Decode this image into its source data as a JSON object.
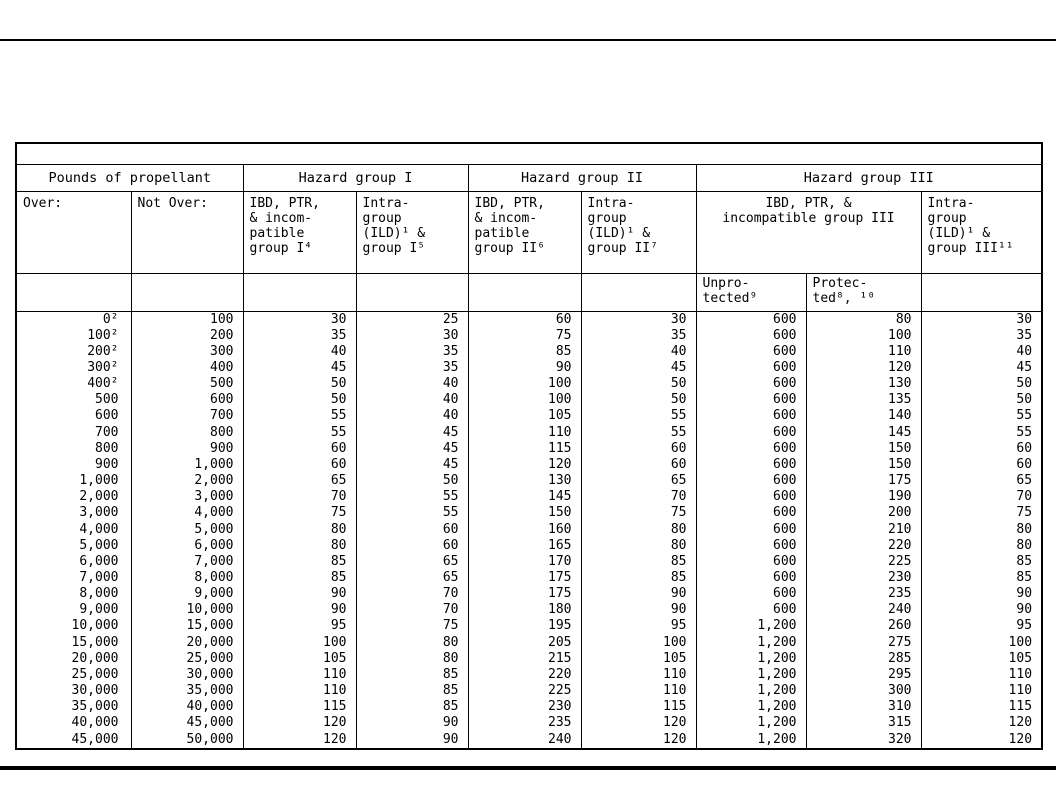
{
  "page": {
    "background": "#ffffff",
    "rule_color": "#000000"
  },
  "table": {
    "group_headers": [
      "Pounds of propellant",
      "Hazard group I",
      "Hazard group II",
      "Hazard group III"
    ],
    "column_headers": {
      "over": "Over:",
      "not_over": "Not Over:",
      "g1_ibd": "IBD, PTR,\n& incom-\npatible\ngroup I⁴",
      "g1_intra": "Intra-\ngroup\n(ILD)¹ &\ngroup I⁵",
      "g2_ibd": "IBD, PTR,\n& incom-\npatible\ngroup II⁶",
      "g2_intra": "Intra-\ngroup\n(ILD)¹ &\ngroup II⁷",
      "g3_ibd": "IBD, PTR, &\nincompatible group III",
      "g3_intra": "Intra-\ngroup\n(ILD)¹ &\ngroup III¹¹"
    },
    "sub_headers": {
      "unprotected": "Unpro-\ntected⁹",
      "protected": "Protec-\nted⁸, ¹⁰"
    },
    "rows": [
      [
        "0²",
        "100",
        "30",
        "25",
        "60",
        "30",
        "600",
        "80",
        "30"
      ],
      [
        "100²",
        "200",
        "35",
        "30",
        "75",
        "35",
        "600",
        "100",
        "35"
      ],
      [
        "200²",
        "300",
        "40",
        "35",
        "85",
        "40",
        "600",
        "110",
        "40"
      ],
      [
        "300²",
        "400",
        "45",
        "35",
        "90",
        "45",
        "600",
        "120",
        "45"
      ],
      [
        "400²",
        "500",
        "50",
        "40",
        "100",
        "50",
        "600",
        "130",
        "50"
      ],
      [
        "500",
        "600",
        "50",
        "40",
        "100",
        "50",
        "600",
        "135",
        "50"
      ],
      [
        "600",
        "700",
        "55",
        "40",
        "105",
        "55",
        "600",
        "140",
        "55"
      ],
      [
        "700",
        "800",
        "55",
        "45",
        "110",
        "55",
        "600",
        "145",
        "55"
      ],
      [
        "800",
        "900",
        "60",
        "45",
        "115",
        "60",
        "600",
        "150",
        "60"
      ],
      [
        "900",
        "1,000",
        "60",
        "45",
        "120",
        "60",
        "600",
        "150",
        "60"
      ],
      [
        "1,000",
        "2,000",
        "65",
        "50",
        "130",
        "65",
        "600",
        "175",
        "65"
      ],
      [
        "2,000",
        "3,000",
        "70",
        "55",
        "145",
        "70",
        "600",
        "190",
        "70"
      ],
      [
        "3,000",
        "4,000",
        "75",
        "55",
        "150",
        "75",
        "600",
        "200",
        "75"
      ],
      [
        "4,000",
        "5,000",
        "80",
        "60",
        "160",
        "80",
        "600",
        "210",
        "80"
      ],
      [
        "5,000",
        "6,000",
        "80",
        "60",
        "165",
        "80",
        "600",
        "220",
        "80"
      ],
      [
        "6,000",
        "7,000",
        "85",
        "65",
        "170",
        "85",
        "600",
        "225",
        "85"
      ],
      [
        "7,000",
        "8,000",
        "85",
        "65",
        "175",
        "85",
        "600",
        "230",
        "85"
      ],
      [
        "8,000",
        "9,000",
        "90",
        "70",
        "175",
        "90",
        "600",
        "235",
        "90"
      ],
      [
        "9,000",
        "10,000",
        "90",
        "70",
        "180",
        "90",
        "600",
        "240",
        "90"
      ],
      [
        "10,000",
        "15,000",
        "95",
        "75",
        "195",
        "95",
        "1,200",
        "260",
        "95"
      ],
      [
        "15,000",
        "20,000",
        "100",
        "80",
        "205",
        "100",
        "1,200",
        "275",
        "100"
      ],
      [
        "20,000",
        "25,000",
        "105",
        "80",
        "215",
        "105",
        "1,200",
        "285",
        "105"
      ],
      [
        "25,000",
        "30,000",
        "110",
        "85",
        "220",
        "110",
        "1,200",
        "295",
        "110"
      ],
      [
        "30,000",
        "35,000",
        "110",
        "85",
        "225",
        "110",
        "1,200",
        "300",
        "110"
      ],
      [
        "35,000",
        "40,000",
        "115",
        "85",
        "230",
        "115",
        "1,200",
        "310",
        "115"
      ],
      [
        "40,000",
        "45,000",
        "120",
        "90",
        "235",
        "120",
        "1,200",
        "315",
        "120"
      ],
      [
        "45,000",
        "50,000",
        "120",
        "90",
        "240",
        "120",
        "1,200",
        "320",
        "120"
      ]
    ]
  }
}
